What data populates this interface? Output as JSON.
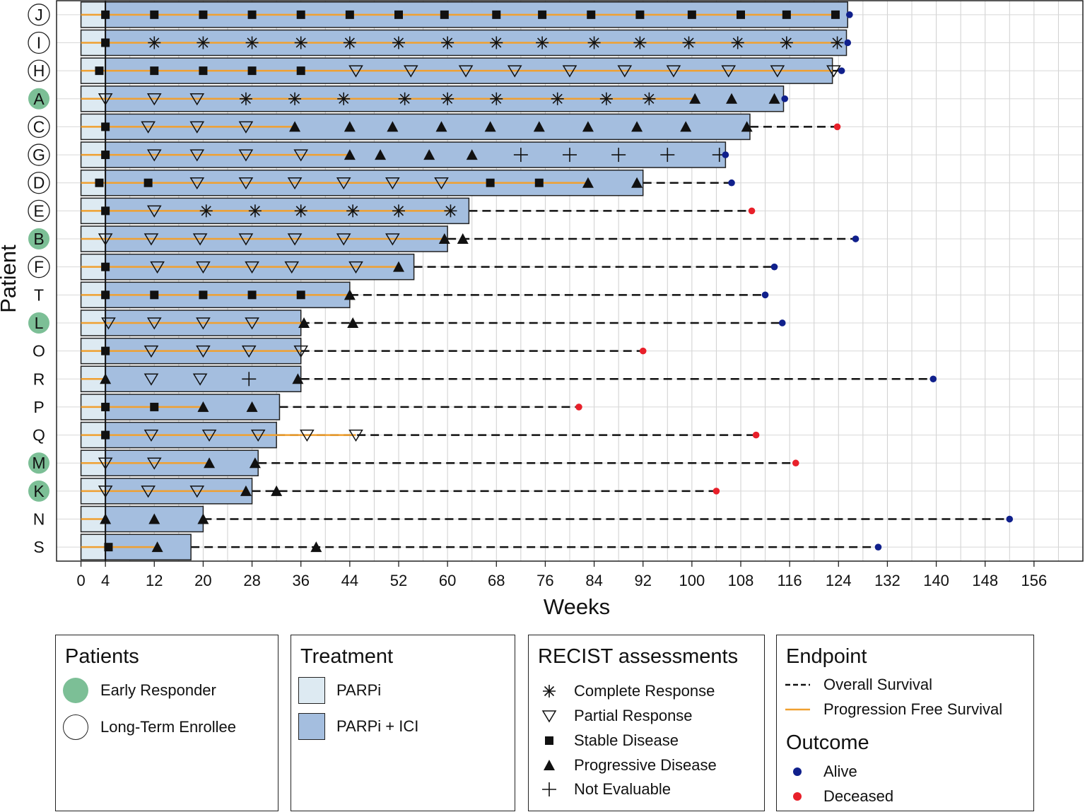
{
  "chart_data": {
    "type": "swimmer",
    "xlabel": "Weeks",
    "ylabel": "Patient",
    "xlim": [
      -4,
      164
    ],
    "xticks": [
      0,
      4,
      12,
      20,
      28,
      36,
      44,
      52,
      60,
      68,
      76,
      84,
      92,
      100,
      108,
      116,
      124,
      132,
      140,
      148,
      156
    ],
    "parpi_end_week": 4,
    "patients": [
      {
        "id": "J",
        "group": "long",
        "bar_end": 125.5,
        "pfs_end": 123.5,
        "os_end": 125.8,
        "outcome": "alive",
        "assessments": [
          [
            4,
            "SD"
          ],
          [
            12,
            "SD"
          ],
          [
            20,
            "SD"
          ],
          [
            28,
            "SD"
          ],
          [
            36,
            "SD"
          ],
          [
            44,
            "SD"
          ],
          [
            52,
            "SD"
          ],
          [
            59.5,
            "SD"
          ],
          [
            68,
            "SD"
          ],
          [
            75.5,
            "SD"
          ],
          [
            83.5,
            "SD"
          ],
          [
            91.5,
            "SD"
          ],
          [
            100,
            "SD"
          ],
          [
            108,
            "SD"
          ],
          [
            115.5,
            "SD"
          ],
          [
            123.5,
            "SD"
          ]
        ]
      },
      {
        "id": "I",
        "group": "long",
        "bar_end": 125.3,
        "pfs_end": 124,
        "os_end": 125.5,
        "outcome": "alive",
        "assessments": [
          [
            4,
            "SD"
          ],
          [
            12,
            "CR"
          ],
          [
            20,
            "CR"
          ],
          [
            28,
            "CR"
          ],
          [
            36,
            "CR"
          ],
          [
            44,
            "CR"
          ],
          [
            52,
            "CR"
          ],
          [
            60,
            "CR"
          ],
          [
            68,
            "CR"
          ],
          [
            75.5,
            "CR"
          ],
          [
            84,
            "CR"
          ],
          [
            91.5,
            "CR"
          ],
          [
            99.5,
            "CR"
          ],
          [
            107.5,
            "CR"
          ],
          [
            115.5,
            "CR"
          ],
          [
            123.8,
            "CR"
          ]
        ]
      },
      {
        "id": "H",
        "group": "long",
        "bar_end": 123,
        "pfs_end": 123,
        "os_end": 124.5,
        "outcome": "alive",
        "assessments": [
          [
            3,
            "SD"
          ],
          [
            12,
            "SD"
          ],
          [
            20,
            "SD"
          ],
          [
            28,
            "SD"
          ],
          [
            36,
            "SD"
          ],
          [
            45,
            "PR"
          ],
          [
            54,
            "PR"
          ],
          [
            63,
            "PR"
          ],
          [
            71,
            "PR"
          ],
          [
            80,
            "PR"
          ],
          [
            89,
            "PR"
          ],
          [
            97,
            "PR"
          ],
          [
            106,
            "PR"
          ],
          [
            114,
            "PR"
          ],
          [
            123.2,
            "PR"
          ]
        ]
      },
      {
        "id": "A",
        "group": "early",
        "bar_end": 115,
        "pfs_end": 100.5,
        "os_end": 115.2,
        "outcome": "alive",
        "assessments": [
          [
            4,
            "PR"
          ],
          [
            12,
            "PR"
          ],
          [
            19,
            "PR"
          ],
          [
            27,
            "CR"
          ],
          [
            35,
            "CR"
          ],
          [
            43,
            "CR"
          ],
          [
            53,
            "CR"
          ],
          [
            60,
            "CR"
          ],
          [
            68,
            "CR"
          ],
          [
            78,
            "CR"
          ],
          [
            86,
            "CR"
          ],
          [
            93,
            "CR"
          ],
          [
            100.5,
            "PD"
          ],
          [
            106.5,
            "PD"
          ],
          [
            113.5,
            "PD"
          ]
        ]
      },
      {
        "id": "C",
        "group": "long",
        "bar_end": 109.5,
        "pfs_end": 35,
        "os_end": 123.8,
        "outcome": "deceased",
        "assessments": [
          [
            4,
            "SD"
          ],
          [
            11,
            "PR"
          ],
          [
            19,
            "PR"
          ],
          [
            27,
            "PR"
          ],
          [
            35,
            "PD"
          ],
          [
            44,
            "PD"
          ],
          [
            51,
            "PD"
          ],
          [
            59,
            "PD"
          ],
          [
            67,
            "PD"
          ],
          [
            75,
            "PD"
          ],
          [
            83,
            "PD"
          ],
          [
            91,
            "PD"
          ],
          [
            99,
            "PD"
          ],
          [
            109,
            "PD"
          ]
        ]
      },
      {
        "id": "G",
        "group": "long",
        "bar_end": 105.5,
        "pfs_end": 44,
        "os_end": 105.5,
        "outcome": "alive",
        "assessments": [
          [
            4,
            "SD"
          ],
          [
            12,
            "PR"
          ],
          [
            19,
            "PR"
          ],
          [
            27,
            "PR"
          ],
          [
            36,
            "PR"
          ],
          [
            44,
            "PD"
          ],
          [
            49,
            "PD"
          ],
          [
            57,
            "PD"
          ],
          [
            64,
            "PD"
          ],
          [
            72,
            "NE"
          ],
          [
            80,
            "NE"
          ],
          [
            88,
            "NE"
          ],
          [
            96,
            "NE"
          ],
          [
            104.5,
            "NE"
          ]
        ]
      },
      {
        "id": "D",
        "group": "long",
        "bar_end": 92,
        "pfs_end": 83,
        "os_end": 106.5,
        "outcome": "alive",
        "assessments": [
          [
            3,
            "SD"
          ],
          [
            11,
            "SD"
          ],
          [
            19,
            "PR"
          ],
          [
            27,
            "PR"
          ],
          [
            35,
            "PR"
          ],
          [
            43,
            "PR"
          ],
          [
            51,
            "PR"
          ],
          [
            59,
            "PR"
          ],
          [
            67,
            "SD"
          ],
          [
            75,
            "SD"
          ],
          [
            83,
            "PD"
          ],
          [
            91,
            "PD"
          ]
        ]
      },
      {
        "id": "E",
        "group": "long",
        "bar_end": 63.5,
        "pfs_end": 60.5,
        "os_end": 109.8,
        "outcome": "deceased",
        "assessments": [
          [
            4,
            "SD"
          ],
          [
            12,
            "PR"
          ],
          [
            20.5,
            "CR"
          ],
          [
            28.5,
            "CR"
          ],
          [
            36,
            "CR"
          ],
          [
            44.5,
            "CR"
          ],
          [
            52,
            "CR"
          ],
          [
            60.5,
            "CR"
          ]
        ]
      },
      {
        "id": "B",
        "group": "early",
        "bar_end": 60,
        "pfs_end": 59.5,
        "os_end": 126.8,
        "outcome": "alive",
        "assessments": [
          [
            4,
            "PR"
          ],
          [
            11.5,
            "PR"
          ],
          [
            19.5,
            "PR"
          ],
          [
            27,
            "PR"
          ],
          [
            35,
            "PR"
          ],
          [
            43,
            "PR"
          ],
          [
            51,
            "PR"
          ],
          [
            59.5,
            "PD"
          ],
          [
            62.5,
            "PD"
          ]
        ]
      },
      {
        "id": "F",
        "group": "long",
        "bar_end": 54.5,
        "pfs_end": 52,
        "os_end": 113.5,
        "outcome": "alive",
        "assessments": [
          [
            4,
            "SD"
          ],
          [
            12.5,
            "PR"
          ],
          [
            20,
            "PR"
          ],
          [
            28,
            "PR"
          ],
          [
            34.5,
            "PR"
          ],
          [
            45,
            "PR"
          ],
          [
            52,
            "PD"
          ]
        ]
      },
      {
        "id": "T",
        "group": "none",
        "bar_end": 44,
        "pfs_end": 44,
        "os_end": 112,
        "outcome": "alive",
        "assessments": [
          [
            4,
            "SD"
          ],
          [
            12,
            "SD"
          ],
          [
            20,
            "SD"
          ],
          [
            28,
            "SD"
          ],
          [
            36,
            "SD"
          ],
          [
            44,
            "PD"
          ]
        ]
      },
      {
        "id": "L",
        "group": "early",
        "bar_end": 36,
        "pfs_end": 36,
        "os_end": 114.8,
        "outcome": "alive",
        "assessments": [
          [
            4.5,
            "PR"
          ],
          [
            12,
            "PR"
          ],
          [
            20,
            "PR"
          ],
          [
            28,
            "PR"
          ],
          [
            36.5,
            "PD"
          ],
          [
            44.5,
            "PD"
          ]
        ]
      },
      {
        "id": "O",
        "group": "none",
        "bar_end": 36,
        "pfs_end": 36,
        "os_end": 92,
        "outcome": "deceased",
        "assessments": [
          [
            4,
            "SD"
          ],
          [
            11.5,
            "PR"
          ],
          [
            20,
            "PR"
          ],
          [
            27.5,
            "PR"
          ],
          [
            36,
            "PR"
          ]
        ]
      },
      {
        "id": "R",
        "group": "none",
        "bar_end": 36,
        "pfs_end": 4,
        "os_end": 139.5,
        "outcome": "alive",
        "assessments": [
          [
            4,
            "PD"
          ],
          [
            11.5,
            "PR"
          ],
          [
            19.5,
            "PR"
          ],
          [
            27.5,
            "NE"
          ],
          [
            35.5,
            "PD"
          ]
        ]
      },
      {
        "id": "P",
        "group": "none",
        "bar_end": 32.5,
        "pfs_end": 20,
        "os_end": 81.5,
        "outcome": "deceased",
        "assessments": [
          [
            4,
            "SD"
          ],
          [
            12,
            "SD"
          ],
          [
            20,
            "PD"
          ],
          [
            28,
            "PD"
          ]
        ]
      },
      {
        "id": "Q",
        "group": "none",
        "bar_end": 32,
        "pfs_end": 45,
        "os_end": 110.5,
        "outcome": "deceased",
        "assessments": [
          [
            4,
            "SD"
          ],
          [
            11.5,
            "PR"
          ],
          [
            21,
            "PR"
          ],
          [
            29,
            "PR"
          ],
          [
            37,
            "PR"
          ],
          [
            45,
            "PR"
          ]
        ]
      },
      {
        "id": "M",
        "group": "early",
        "bar_end": 29,
        "pfs_end": 21,
        "os_end": 117,
        "outcome": "deceased",
        "assessments": [
          [
            4,
            "PR"
          ],
          [
            12,
            "PR"
          ],
          [
            21,
            "PD"
          ],
          [
            28.5,
            "PD"
          ]
        ]
      },
      {
        "id": "K",
        "group": "early",
        "bar_end": 28,
        "pfs_end": 27,
        "os_end": 104,
        "outcome": "deceased",
        "assessments": [
          [
            4,
            "PR"
          ],
          [
            11,
            "PR"
          ],
          [
            19,
            "PR"
          ],
          [
            27,
            "PD"
          ],
          [
            32,
            "PD"
          ]
        ]
      },
      {
        "id": "N",
        "group": "none",
        "bar_end": 20,
        "pfs_end": 4,
        "os_end": 152,
        "outcome": "alive",
        "assessments": [
          [
            4,
            "PD"
          ],
          [
            12,
            "PD"
          ],
          [
            20,
            "PD"
          ]
        ]
      },
      {
        "id": "S",
        "group": "none",
        "bar_end": 18,
        "pfs_end": 12,
        "os_end": 130.5,
        "outcome": "alive",
        "assessments": [
          [
            4.5,
            "SD"
          ],
          [
            12.5,
            "PD"
          ],
          [
            38.5,
            "PD"
          ]
        ]
      }
    ]
  },
  "legends": {
    "patients": {
      "title": "Patients",
      "early": "Early Responder",
      "long": "Long-Term Enrollee"
    },
    "treatment": {
      "title": "Treatment",
      "parpi": "PARPi",
      "combo": "PARPi + ICI"
    },
    "recist": {
      "title": "RECIST assessments",
      "cr": "Complete Response",
      "pr": "Partial Response",
      "sd": "Stable Disease",
      "pd": "Progressive Disease",
      "ne": "Not Evaluable"
    },
    "endpoint": {
      "title": "Endpoint",
      "os": "Overall Survival",
      "pfs": "Progression Free Survival"
    },
    "outcome": {
      "title": "Outcome",
      "alive": "Alive",
      "deceased": "Deceased"
    }
  },
  "colors": {
    "parpi": "#ddeaf2",
    "combo": "#a4bedf",
    "pfs": "#f0a030",
    "alive": "#10208c",
    "deceased": "#e8202a",
    "early": "#7cbf96",
    "grid": "#cfcfcf"
  }
}
